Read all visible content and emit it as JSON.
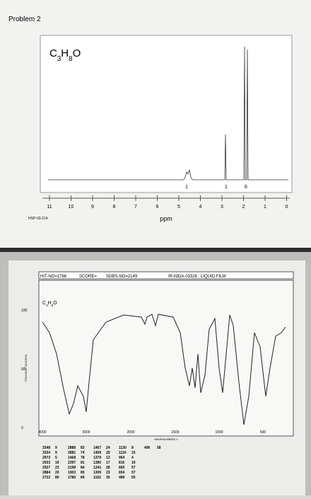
{
  "header": {
    "title": "Problem 2"
  },
  "nmr": {
    "formula": [
      "C",
      "3",
      "H",
      "8",
      "O"
    ],
    "integrals": [
      "1",
      "1",
      "6"
    ],
    "axis_labels": [
      "11",
      "10",
      "9",
      "8",
      "7",
      "6",
      "5",
      "4",
      "3",
      "2",
      "1",
      "0"
    ],
    "axis_title": "ppm",
    "code": "HSP-03-214"
  },
  "ir": {
    "header": [
      "HIT-NO=1766",
      "SCORE=",
      "SDBS-NO=2149",
      "IR-NIDA-03326 : LIQUID FILM"
    ],
    "formula": [
      "C",
      "3",
      "H",
      "8",
      "O"
    ],
    "y_labels": [
      "100",
      "50",
      "0"
    ],
    "x_labels": [
      "4000",
      "3000",
      "2000",
      "1500",
      "1000",
      "500"
    ],
    "x_title": "WAVENUMBER/-1",
    "y_title": "TRANSMITTANCE/%",
    "table": [
      [
        "3348",
        "9",
        "2888",
        "83",
        "1467",
        "24",
        "1130",
        "8",
        "496",
        "58"
      ],
      [
        "3334",
        "9",
        "2881",
        "74",
        "1409",
        "29",
        "1110",
        "15"
      ],
      [
        "2973",
        "5",
        "1468",
        "78",
        "1379",
        "13",
        "954",
        "4"
      ],
      [
        "2933",
        "19",
        "2397",
        "81",
        "1380",
        "17",
        "816",
        "19"
      ],
      [
        "2927",
        "23",
        "2198",
        "84",
        "1341",
        "28",
        "660",
        "57"
      ],
      [
        "2884",
        "20",
        "1903",
        "85",
        "1309",
        "23",
        "654",
        "57"
      ],
      [
        "2722",
        "80",
        "1786",
        "84",
        "1162",
        "35",
        "489",
        "55"
      ]
    ]
  }
}
